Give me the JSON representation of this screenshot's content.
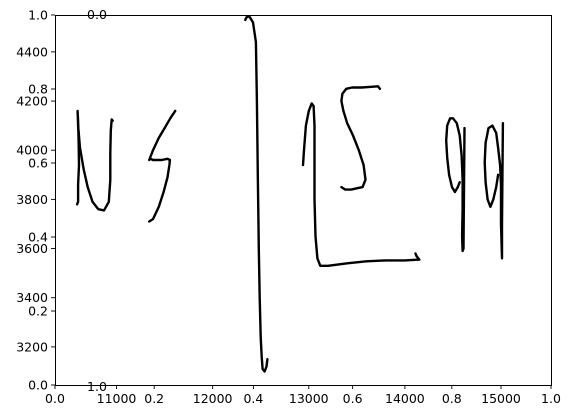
{
  "chart_data": {
    "type": "line",
    "title": "",
    "xlabel": "",
    "ylabel": "",
    "grid": false,
    "legend": "none",
    "stroke_color": "#000000",
    "axes_overlay": {
      "x_ticks": [
        "0.0",
        "0.2",
        "0.4",
        "0.6",
        "0.8",
        "1.0"
      ],
      "y_ticks": [
        "0.0",
        "0.2",
        "0.4",
        "0.6",
        "0.8",
        "1.0"
      ],
      "xlim": [
        0,
        1
      ],
      "ylim": [
        0,
        1
      ]
    },
    "axes_data": {
      "x_ticks": [
        "11000",
        "12000",
        "13000",
        "14000",
        "15000"
      ],
      "x_tick_values": [
        11000,
        12000,
        13000,
        14000,
        15000
      ],
      "y_ticks": [
        "3200",
        "3400",
        "3600",
        "3800",
        "4000",
        "4200",
        "4400"
      ],
      "y_tick_values": [
        3200,
        3400,
        3600,
        3800,
        4000,
        4200,
        4400
      ],
      "xlim": [
        10360,
        15520
      ],
      "ylim": [
        3045,
        4550
      ]
    },
    "axes_inset_top": {
      "x_ticks": [
        "1.0"
      ],
      "y_ticks": [
        "0.0"
      ]
    },
    "series": [
      {
        "x": [
          10590,
          10600,
          10600,
          10610,
          10605,
          10600,
          10595,
          10600
        ],
        "y": [
          3780,
          3790,
          3860,
          3940,
          4040,
          4120,
          4160,
          4100
        ]
      },
      {
        "x": [
          10600,
          10620,
          10660,
          10700,
          10750,
          10810,
          10870,
          10920,
          10935,
          10935,
          10940,
          10950,
          10960
        ],
        "y": [
          4100,
          4010,
          3920,
          3850,
          3790,
          3760,
          3755,
          3790,
          3880,
          3990,
          4080,
          4125,
          4120
        ]
      },
      {
        "x": [
          11340,
          11380,
          11440,
          11490,
          11530,
          11550,
          11555,
          11530,
          11470,
          11420,
          11380,
          11355,
          11340,
          11380,
          11440,
          11500,
          11560,
          11610
        ],
        "y": [
          3710,
          3720,
          3770,
          3830,
          3890,
          3940,
          3960,
          3965,
          3960,
          3960,
          3960,
          3965,
          3960,
          4000,
          4050,
          4090,
          4130,
          4160
        ]
      },
      {
        "x": [
          12340,
          12350,
          12380,
          12420,
          12450,
          12460,
          12470,
          12480,
          12490,
          12500,
          12510,
          12520,
          12540,
          12560,
          12570
        ],
        "y": [
          4530,
          4540,
          4545,
          4520,
          4440,
          4200,
          3900,
          3600,
          3400,
          3240,
          3160,
          3110,
          3100,
          3120,
          3150
        ]
      },
      {
        "x": [
          12940,
          12950,
          12970,
          13000,
          13030,
          13050,
          13060,
          13060,
          13060,
          13070,
          13090,
          13120,
          13200,
          13400,
          13600,
          13800,
          14000,
          14150
        ],
        "y": [
          3940,
          4000,
          4100,
          4160,
          4190,
          4180,
          4100,
          3950,
          3800,
          3650,
          3560,
          3530,
          3530,
          3540,
          3548,
          3552,
          3552,
          3555
        ]
      },
      {
        "x": [
          14150,
          14120,
          14110
        ],
        "y": [
          3555,
          3570,
          3580
        ]
      },
      {
        "x": [
          13340,
          13380,
          13440,
          13500,
          13560,
          13590,
          13570,
          13520,
          13460,
          13400,
          13360,
          13340,
          13350,
          13390,
          13450,
          13550,
          13650,
          13720,
          13740
        ],
        "y": [
          3850,
          3840,
          3840,
          3845,
          3850,
          3880,
          3940,
          4000,
          4060,
          4110,
          4160,
          4200,
          4230,
          4250,
          4255,
          4255,
          4258,
          4260,
          4250
        ]
      },
      {
        "x": [
          14570,
          14550,
          14520,
          14490,
          14460,
          14440,
          14430,
          14440,
          14470,
          14500,
          14540,
          14570,
          14590,
          14600,
          14600,
          14595,
          14600,
          14610,
          14620
        ],
        "y": [
          3870,
          3850,
          3830,
          3850,
          3900,
          3970,
          4040,
          4100,
          4130,
          4130,
          4110,
          4060,
          3980,
          3880,
          3760,
          3650,
          3590,
          3600,
          4090
        ]
      },
      {
        "x": [
          14970,
          14950,
          14920,
          14890,
          14860,
          14840,
          14830,
          14840,
          14870,
          14910,
          14950,
          14970,
          14990,
          15000,
          15000,
          15010,
          15010,
          15020
        ],
        "y": [
          3900,
          3850,
          3800,
          3770,
          3800,
          3870,
          3950,
          4030,
          4090,
          4100,
          4070,
          4010,
          3940,
          3860,
          3700,
          3560,
          3700,
          4110
        ]
      }
    ]
  }
}
